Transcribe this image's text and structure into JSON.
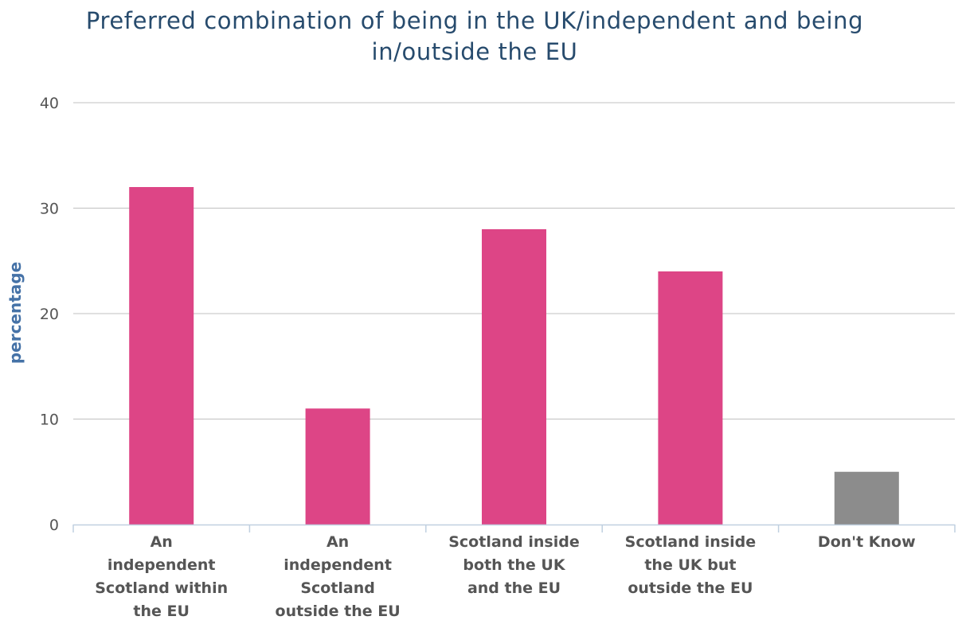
{
  "chart_data": {
    "type": "bar",
    "title": "Preferred combination of being in the UK/independent and being in/outside the EU",
    "title_lines": [
      "Preferred combination of being in the UK/independent and being",
      "in/outside the EU"
    ],
    "ylabel": "percentage",
    "xlabel": "",
    "ylim": [
      0,
      40
    ],
    "yticks": [
      0,
      10,
      20,
      30,
      40
    ],
    "grid": true,
    "legend": "none",
    "categories": [
      "An independent Scotland within the EU",
      "An independent Scotland outside the EU",
      "Scotland inside both the UK and the EU",
      "Scotland inside the UK but outside the EU",
      "Don't Know"
    ],
    "category_label_lines": [
      [
        "An",
        "independent",
        "Scotland within",
        "the EU"
      ],
      [
        "An",
        "independent",
        "Scotland",
        "outside the EU"
      ],
      [
        "Scotland inside",
        "both the UK",
        "and the EU"
      ],
      [
        "Scotland inside",
        "the UK but",
        "outside the EU"
      ],
      [
        "Don't Know"
      ]
    ],
    "values": [
      32,
      11,
      28,
      24,
      5
    ],
    "colors": [
      "#dd4586",
      "#dd4586",
      "#dd4586",
      "#dd4586",
      "#8c8c8c"
    ]
  }
}
